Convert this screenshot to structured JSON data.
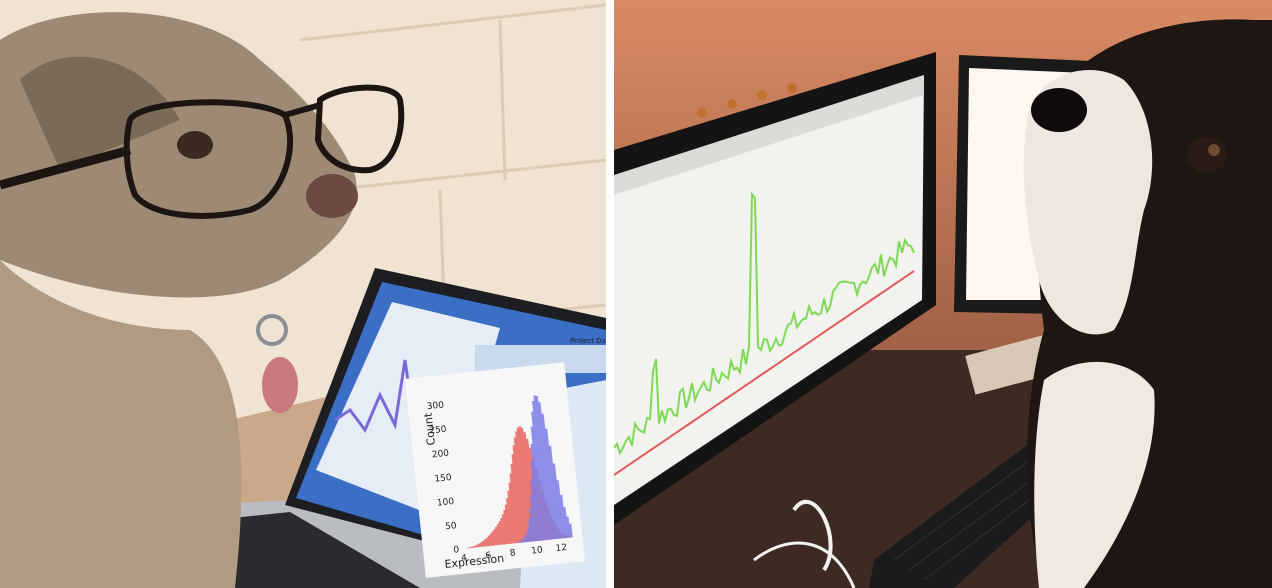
{
  "left_photo": {
    "laptop_screen": {
      "histogram": {
        "y_label": "Count",
        "x_label": "Expression",
        "y_ticks": [
          "0",
          "50",
          "100",
          "150",
          "200",
          "250",
          "300"
        ],
        "x_ticks": [
          "4",
          "6",
          "8",
          "10",
          "12"
        ],
        "colors": {
          "series_a": "#e8665e",
          "series_b": "#7d7fe6"
        }
      },
      "panel_title": "Project Data"
    }
  },
  "right_photo": {
    "monitor_screen": {
      "line_colors": {
        "signal": "#7ed957",
        "trend": "#e05a5a"
      }
    }
  }
}
